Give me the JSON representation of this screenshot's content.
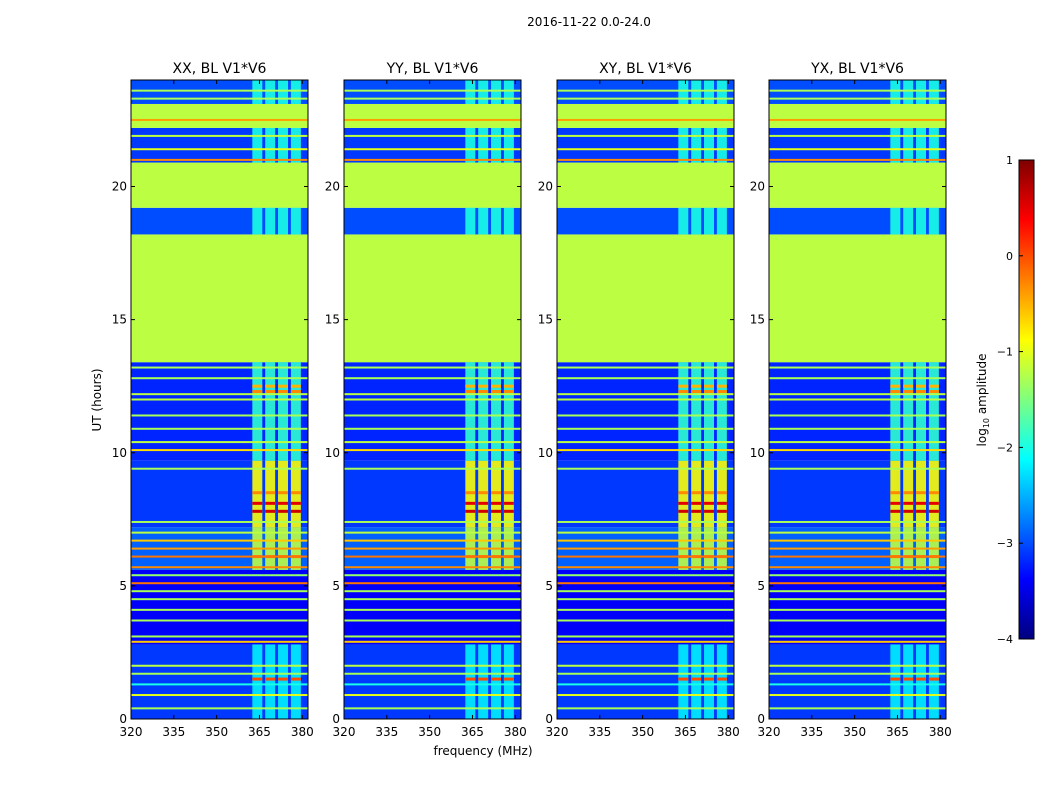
{
  "figure": {
    "suptitle": "2016-11-22 0.0-24.0",
    "xlabel": "frequency (MHz)",
    "ylabel": "UT (hours)"
  },
  "chart_data": {
    "type": "heatmap",
    "colormap": "jet",
    "xlim": [
      320,
      382
    ],
    "ylim": [
      0,
      24
    ],
    "xticks": [
      320,
      335,
      350,
      365,
      380
    ],
    "yticks": [
      0,
      5,
      10,
      15,
      20
    ],
    "colorbar": {
      "label_main": "log",
      "label_sub": "10",
      "label_tail": " amplitude",
      "vlim": [
        -4,
        1
      ],
      "ticks": [
        1,
        0,
        -1,
        -2,
        -3,
        -4
      ],
      "tick_labels": [
        "1",
        "0",
        "−1",
        "−2",
        "−3",
        "−4"
      ],
      "stops": [
        "#00007f",
        "#0000ff",
        "#007fff",
        "#00ffff",
        "#7fff7f",
        "#ffff00",
        "#ff7f00",
        "#ff0000",
        "#7f0000"
      ]
    },
    "background_bands": [
      {
        "t0": 0.0,
        "t1": 2.8,
        "value": -3.1
      },
      {
        "t0": 2.8,
        "t1": 5.6,
        "value": -3.4
      },
      {
        "t0": 5.6,
        "t1": 7.2,
        "value": -2.9
      },
      {
        "t0": 7.2,
        "t1": 9.7,
        "value": -3.1
      },
      {
        "t0": 9.7,
        "t1": 13.4,
        "value": -3.2
      },
      {
        "t0": 13.4,
        "t1": 18.2,
        "value": -1.2
      },
      {
        "t0": 18.2,
        "t1": 19.2,
        "value": -3.0
      },
      {
        "t0": 19.2,
        "t1": 20.9,
        "value": -1.2
      },
      {
        "t0": 20.9,
        "t1": 22.2,
        "value": -3.1
      },
      {
        "t0": 22.2,
        "t1": 23.1,
        "value": -1.2
      },
      {
        "t0": 23.1,
        "t1": 24.0,
        "value": -3.0
      }
    ],
    "flag_lines": [
      {
        "t": 0.4,
        "value": -1.3
      },
      {
        "t": 0.9,
        "value": -1.0
      },
      {
        "t": 1.3,
        "value": -2.0
      },
      {
        "t": 1.7,
        "value": -1.3
      },
      {
        "t": 2.0,
        "value": -1.2
      },
      {
        "t": 2.9,
        "value": -0.6
      },
      {
        "t": 3.1,
        "value": -1.3
      },
      {
        "t": 3.7,
        "value": -1.3
      },
      {
        "t": 4.1,
        "value": -1.3
      },
      {
        "t": 4.5,
        "value": -1.3
      },
      {
        "t": 4.8,
        "value": -1.3
      },
      {
        "t": 5.1,
        "value": -0.2
      },
      {
        "t": 5.4,
        "value": -1.4
      },
      {
        "t": 5.7,
        "value": -0.3
      },
      {
        "t": 6.1,
        "value": -0.2
      },
      {
        "t": 6.4,
        "value": -0.4
      },
      {
        "t": 6.7,
        "value": -0.6
      },
      {
        "t": 7.0,
        "value": -1.2
      },
      {
        "t": 7.4,
        "value": -1.3
      },
      {
        "t": 9.4,
        "value": -1.3
      },
      {
        "t": 10.1,
        "value": -0.7
      },
      {
        "t": 10.4,
        "value": -1.2
      },
      {
        "t": 10.9,
        "value": -1.3
      },
      {
        "t": 11.4,
        "value": -1.3
      },
      {
        "t": 12.0,
        "value": -1.2
      },
      {
        "t": 12.2,
        "value": -1.2
      },
      {
        "t": 12.8,
        "value": -1.3
      },
      {
        "t": 13.2,
        "value": -1.3
      },
      {
        "t": 21.0,
        "value": -0.3
      },
      {
        "t": 21.4,
        "value": -1.0
      },
      {
        "t": 21.9,
        "value": -1.2
      },
      {
        "t": 22.5,
        "value": -0.4
      },
      {
        "t": 23.3,
        "value": -1.3
      },
      {
        "t": 23.6,
        "value": -1.3
      }
    ],
    "signal_columns": [
      {
        "f0": 362.5,
        "f1": 366.0
      },
      {
        "f0": 367.0,
        "f1": 370.5
      },
      {
        "f0": 371.5,
        "f1": 375.0
      },
      {
        "f0": 376.0,
        "f1": 379.5
      }
    ],
    "signal_bands": [
      {
        "t0": 0.0,
        "t1": 2.8,
        "value": -2.2
      },
      {
        "t0": 5.6,
        "t1": 7.2,
        "value": -1.2
      },
      {
        "t0": 7.2,
        "t1": 9.7,
        "value": -0.9
      },
      {
        "t0": 9.7,
        "t1": 13.4,
        "value": -1.9
      },
      {
        "t0": 18.2,
        "t1": 19.2,
        "value": -2.0
      },
      {
        "t0": 20.9,
        "t1": 22.2,
        "value": -2.0
      },
      {
        "t0": 23.1,
        "t1": 24.0,
        "value": -2.0
      }
    ],
    "hot_lines": [
      {
        "t": 1.5,
        "value": 0.0
      },
      {
        "t": 7.8,
        "value": 0.6
      },
      {
        "t": 8.1,
        "value": 0.5
      },
      {
        "t": 8.5,
        "value": -0.3
      },
      {
        "t": 6.1,
        "value": -0.2
      },
      {
        "t": 12.5,
        "value": -0.5
      },
      {
        "t": 12.3,
        "value": -0.3
      }
    ],
    "panels": [
      {
        "title": "XX, BL V1*V6"
      },
      {
        "title": "YY, BL V1*V6"
      },
      {
        "title": "XY, BL V1*V6"
      },
      {
        "title": "YX, BL V1*V6"
      }
    ]
  }
}
